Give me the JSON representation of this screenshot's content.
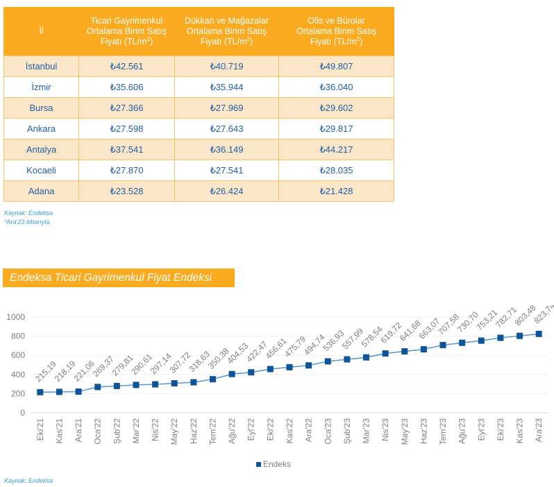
{
  "table": {
    "headers": {
      "city": "İl",
      "commercial": [
        "Ticari Gayrimenkul",
        "Ortalama Birim Satış",
        "Fiyatı (TL/m",
        "2",
        ")"
      ],
      "shops": [
        "Dükkan ve Mağazalar",
        "Ortalama Birim Satış",
        "Fiyatı (TL/m",
        "2",
        ")"
      ],
      "offices": [
        "Ofis ve Bürolar",
        "Ortalama Birim Satış",
        "Fiyatı (TL/m",
        "2",
        ")"
      ]
    },
    "rows": [
      {
        "city": "İstanbul",
        "commercial": "₺42.561",
        "shops": "₺40.719",
        "offices": "₺49.807"
      },
      {
        "city": "İzmir",
        "commercial": "₺35.606",
        "shops": "₺35.944",
        "offices": "₺36.040"
      },
      {
        "city": "Bursa",
        "commercial": "₺27.366",
        "shops": "₺27.969",
        "offices": "₺29.602"
      },
      {
        "city": "Ankara",
        "commercial": "₺27.598",
        "shops": "₺27.643",
        "offices": "₺29.817"
      },
      {
        "city": "Antalya",
        "commercial": "₺37.541",
        "shops": "₺36.149",
        "offices": "₺44.217"
      },
      {
        "city": "Kocaeli",
        "commercial": "₺27.870",
        "shops": "₺27.541",
        "offices": "₺28.035"
      },
      {
        "city": "Adana",
        "commercial": "₺23.528",
        "shops": "₺26.424",
        "offices": "₺21.428"
      }
    ],
    "source": "Kaynak: Endeksa",
    "footnote": "*Ara'23 itibarıyla."
  },
  "chart_section": {
    "banner_title": "Endeksa Ticari Gayrimenkul Fiyat Endeksi",
    "source": "Kaynak: Endeksa"
  },
  "colors": {
    "accent_orange": "#fbab1f",
    "series_blue": "#0f5496",
    "line_blue": "#5b9bd5",
    "label_gray": "#7f7f7f"
  },
  "chart_data": {
    "type": "line",
    "title": "Endeksa Ticari Gayrimenkul Fiyat Endeksi",
    "xlabel": "",
    "ylabel": "",
    "ylim": [
      0,
      1000
    ],
    "yticks": [
      0,
      200,
      400,
      600,
      800,
      1000
    ],
    "grid": true,
    "legend": "bottom",
    "categories": [
      "Eki'21",
      "Kas'21",
      "Ara'21",
      "Oca'22",
      "Şub'22",
      "Mar'22",
      "Nis'22",
      "May'22",
      "Haz'22",
      "Tem'22",
      "Ağu'22",
      "Eyl'22",
      "Eki'22",
      "Kas'22",
      "Ara'22",
      "Oca'23",
      "Şub'23",
      "Mar'23",
      "Nis'23",
      "May'23",
      "Haz'23",
      "Tem'23",
      "Ağu'23",
      "Eyl'23",
      "Eki'23",
      "Kas'23",
      "Ara'23"
    ],
    "series": [
      {
        "name": "Endeks",
        "values": [
          215.19,
          218.19,
          221.06,
          269.37,
          279.81,
          290.61,
          297.14,
          307.72,
          318.63,
          350.38,
          404.53,
          422.47,
          456.61,
          475.79,
          494.74,
          536.93,
          557.99,
          578.54,
          619.72,
          641.68,
          663.07,
          707.58,
          730.7,
          753.21,
          782.71,
          803.48,
          823.74
        ],
        "labels": [
          "215,19",
          "218,19",
          "221,06",
          "269,37",
          "279,81",
          "290,61",
          "297,14",
          "307,72",
          "318,63",
          "350,38",
          "404,53",
          "422,47",
          "456,61",
          "475,79",
          "494,74",
          "536,93",
          "557,99",
          "578,54",
          "619,72",
          "641,68",
          "663,07",
          "707,58",
          "730,70",
          "753,21",
          "782,71",
          "803,48",
          "823,74"
        ]
      }
    ]
  }
}
